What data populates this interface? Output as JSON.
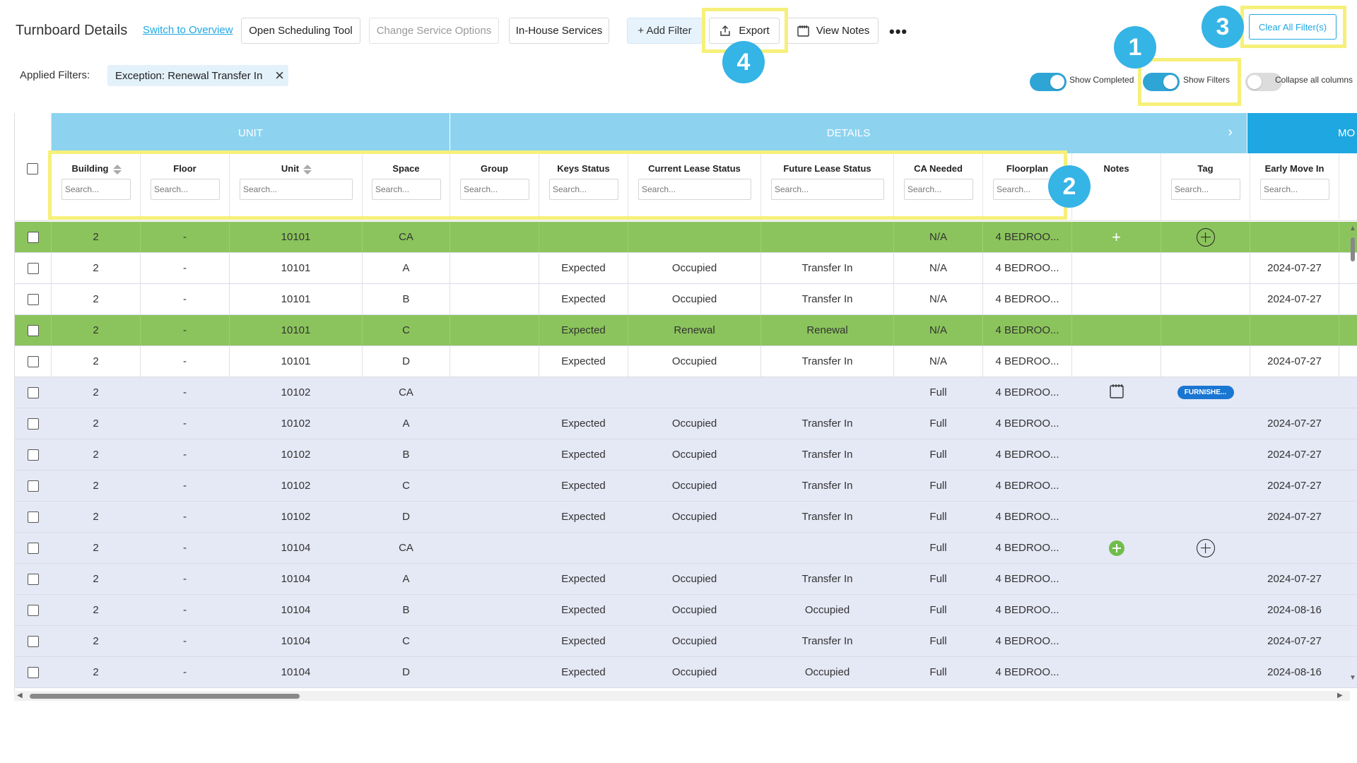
{
  "header": {
    "title": "Turnboard Details",
    "switch_link": "Switch to Overview",
    "buttons": {
      "scheduling": "Open Scheduling Tool",
      "service_options": "Change Service Options",
      "inhouse": "In-House Services",
      "add_filter": "+ Add Filter",
      "export": "Export",
      "view_notes": "View Notes",
      "more": "•••"
    },
    "clear_filters": "Clear All Filter(s)"
  },
  "filters": {
    "label": "Applied Filters:",
    "chips": [
      "Exception: Renewal Transfer In"
    ]
  },
  "toggles": [
    {
      "label": "Show Completed",
      "on": true
    },
    {
      "label": "Show Filters",
      "on": true
    },
    {
      "label": "Collapse all columns",
      "on": false
    }
  ],
  "annotations": [
    "1",
    "2",
    "3",
    "4"
  ],
  "colors": {
    "accent": "#1ea7e1",
    "group_header": "#8dd3f0",
    "group_header_dark": "#1ea7e1",
    "row_green": "#8bc45c",
    "row_lavender": "#e5e8f5",
    "highlight": "#f6f07a",
    "badge": "#35b4e6",
    "tag": "#1976d2"
  },
  "grid": {
    "groups": [
      {
        "label": "UNIT"
      },
      {
        "label": "DETAILS"
      },
      {
        "label": "MO"
      }
    ],
    "search_placeholder": "Search...",
    "columns": [
      {
        "key": "building",
        "label": "Building",
        "sortable": true,
        "search": true
      },
      {
        "key": "floor",
        "label": "Floor",
        "sortable": false,
        "search": true
      },
      {
        "key": "unit",
        "label": "Unit",
        "sortable": true,
        "search": true
      },
      {
        "key": "space",
        "label": "Space",
        "sortable": false,
        "search": true
      },
      {
        "key": "group",
        "label": "Group",
        "sortable": false,
        "search": true
      },
      {
        "key": "keys",
        "label": "Keys Status",
        "sortable": false,
        "search": true
      },
      {
        "key": "cur_lease",
        "label": "Current Lease Status",
        "sortable": false,
        "search": true
      },
      {
        "key": "fut_lease",
        "label": "Future Lease Status",
        "sortable": false,
        "search": true
      },
      {
        "key": "ca",
        "label": "CA Needed",
        "sortable": false,
        "search": true
      },
      {
        "key": "floorplan",
        "label": "Floorplan",
        "sortable": false,
        "search": true
      },
      {
        "key": "notes",
        "label": "Notes",
        "sortable": false,
        "search": false
      },
      {
        "key": "tag",
        "label": "Tag",
        "sortable": false,
        "search": true
      },
      {
        "key": "early",
        "label": "Early Move In",
        "sortable": false,
        "search": true
      }
    ],
    "rows": [
      {
        "style": "green",
        "building": "2",
        "floor": "-",
        "unit": "10101",
        "space": "CA",
        "group": "",
        "keys": "",
        "cur_lease": "",
        "fut_lease": "",
        "ca": "N/A",
        "floorplan": "4 BEDROO...",
        "notes": "plus",
        "tag": "plus-circle",
        "early": ""
      },
      {
        "style": "white",
        "building": "2",
        "floor": "-",
        "unit": "10101",
        "space": "A",
        "group": "",
        "keys": "Expected",
        "cur_lease": "Occupied",
        "fut_lease": "Transfer In",
        "ca": "N/A",
        "floorplan": "4 BEDROO...",
        "notes": "",
        "tag": "",
        "early": "2024-07-27"
      },
      {
        "style": "white",
        "building": "2",
        "floor": "-",
        "unit": "10101",
        "space": "B",
        "group": "",
        "keys": "Expected",
        "cur_lease": "Occupied",
        "fut_lease": "Transfer In",
        "ca": "N/A",
        "floorplan": "4 BEDROO...",
        "notes": "",
        "tag": "",
        "early": "2024-07-27"
      },
      {
        "style": "green",
        "building": "2",
        "floor": "-",
        "unit": "10101",
        "space": "C",
        "group": "",
        "keys": "Expected",
        "cur_lease": "Renewal",
        "fut_lease": "Renewal",
        "ca": "N/A",
        "floorplan": "4 BEDROO...",
        "notes": "",
        "tag": "",
        "early": ""
      },
      {
        "style": "white",
        "building": "2",
        "floor": "-",
        "unit": "10101",
        "space": "D",
        "group": "",
        "keys": "Expected",
        "cur_lease": "Occupied",
        "fut_lease": "Transfer In",
        "ca": "N/A",
        "floorplan": "4 BEDROO...",
        "notes": "",
        "tag": "",
        "early": "2024-07-27"
      },
      {
        "style": "lav",
        "building": "2",
        "floor": "-",
        "unit": "10102",
        "space": "CA",
        "group": "",
        "keys": "",
        "cur_lease": "",
        "fut_lease": "",
        "ca": "Full",
        "floorplan": "4 BEDROO...",
        "notes": "notepad",
        "tag": "FURNISHE...",
        "early": ""
      },
      {
        "style": "lav",
        "building": "2",
        "floor": "-",
        "unit": "10102",
        "space": "A",
        "group": "",
        "keys": "Expected",
        "cur_lease": "Occupied",
        "fut_lease": "Transfer In",
        "ca": "Full",
        "floorplan": "4 BEDROO...",
        "notes": "",
        "tag": "",
        "early": "2024-07-27"
      },
      {
        "style": "lav",
        "building": "2",
        "floor": "-",
        "unit": "10102",
        "space": "B",
        "group": "",
        "keys": "Expected",
        "cur_lease": "Occupied",
        "fut_lease": "Transfer In",
        "ca": "Full",
        "floorplan": "4 BEDROO...",
        "notes": "",
        "tag": "",
        "early": "2024-07-27"
      },
      {
        "style": "lav",
        "building": "2",
        "floor": "-",
        "unit": "10102",
        "space": "C",
        "group": "",
        "keys": "Expected",
        "cur_lease": "Occupied",
        "fut_lease": "Transfer In",
        "ca": "Full",
        "floorplan": "4 BEDROO...",
        "notes": "",
        "tag": "",
        "early": "2024-07-27"
      },
      {
        "style": "lav",
        "building": "2",
        "floor": "-",
        "unit": "10102",
        "space": "D",
        "group": "",
        "keys": "Expected",
        "cur_lease": "Occupied",
        "fut_lease": "Transfer In",
        "ca": "Full",
        "floorplan": "4 BEDROO...",
        "notes": "",
        "tag": "",
        "early": "2024-07-27"
      },
      {
        "style": "lav",
        "building": "2",
        "floor": "-",
        "unit": "10104",
        "space": "CA",
        "group": "",
        "keys": "",
        "cur_lease": "",
        "fut_lease": "",
        "ca": "Full",
        "floorplan": "4 BEDROO...",
        "notes": "plus-green",
        "tag": "plus-circle",
        "early": ""
      },
      {
        "style": "lav",
        "building": "2",
        "floor": "-",
        "unit": "10104",
        "space": "A",
        "group": "",
        "keys": "Expected",
        "cur_lease": "Occupied",
        "fut_lease": "Transfer In",
        "ca": "Full",
        "floorplan": "4 BEDROO...",
        "notes": "",
        "tag": "",
        "early": "2024-07-27"
      },
      {
        "style": "lav",
        "building": "2",
        "floor": "-",
        "unit": "10104",
        "space": "B",
        "group": "",
        "keys": "Expected",
        "cur_lease": "Occupied",
        "fut_lease": "Occupied",
        "ca": "Full",
        "floorplan": "4 BEDROO...",
        "notes": "",
        "tag": "",
        "early": "2024-08-16"
      },
      {
        "style": "lav",
        "building": "2",
        "floor": "-",
        "unit": "10104",
        "space": "C",
        "group": "",
        "keys": "Expected",
        "cur_lease": "Occupied",
        "fut_lease": "Transfer In",
        "ca": "Full",
        "floorplan": "4 BEDROO...",
        "notes": "",
        "tag": "",
        "early": "2024-07-27"
      },
      {
        "style": "lav",
        "building": "2",
        "floor": "-",
        "unit": "10104",
        "space": "D",
        "group": "",
        "keys": "Expected",
        "cur_lease": "Occupied",
        "fut_lease": "Occupied",
        "ca": "Full",
        "floorplan": "4 BEDROO...",
        "notes": "",
        "tag": "",
        "early": "2024-08-16"
      }
    ]
  }
}
